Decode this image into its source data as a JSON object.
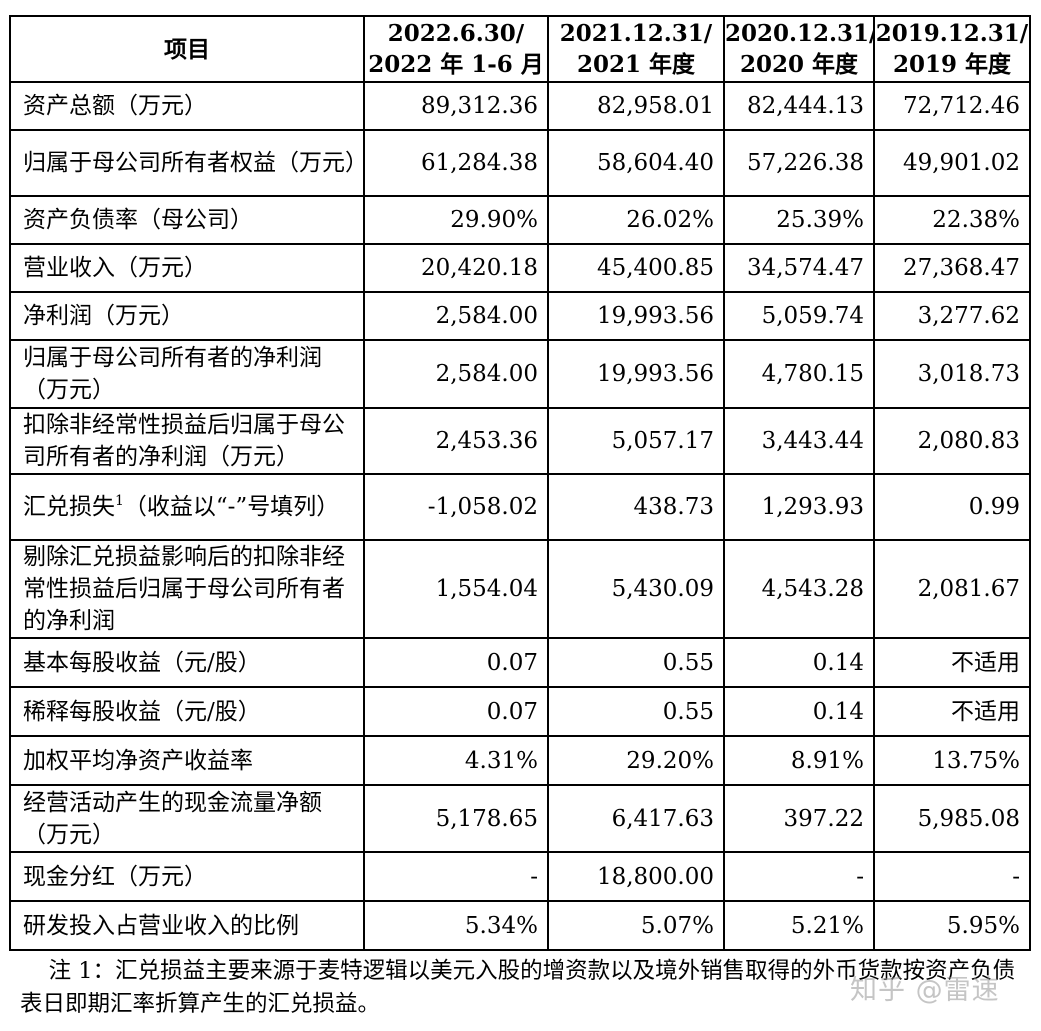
{
  "table": {
    "headers": [
      {
        "line1": "项目",
        "line2": ""
      },
      {
        "line1": "2022.6.30/",
        "line2": "2022 年 1-6 月"
      },
      {
        "line1": "2021.12.31/",
        "line2": "2021 年度"
      },
      {
        "line1": "2020.12.31/",
        "line2": "2020 年度"
      },
      {
        "line1": "2019.12.31/",
        "line2": "2019 年度"
      }
    ],
    "rows": [
      {
        "label": "资产总额（万元）",
        "values": [
          "89,312.36",
          "82,958.01",
          "82,444.13",
          "72,712.46"
        ]
      },
      {
        "label": "归属于母公司所有者权益（万元）",
        "values": [
          "61,284.38",
          "58,604.40",
          "57,226.38",
          "49,901.02"
        ]
      },
      {
        "label": "资产负债率（母公司）",
        "values": [
          "29.90%",
          "26.02%",
          "25.39%",
          "22.38%"
        ]
      },
      {
        "label": "营业收入（万元）",
        "values": [
          "20,420.18",
          "45,400.85",
          "34,574.47",
          "27,368.47"
        ]
      },
      {
        "label": "净利润（万元）",
        "values": [
          "2,584.00",
          "19,993.56",
          "5,059.74",
          "3,277.62"
        ]
      },
      {
        "label": "归属于母公司所有者的净利润（万元）",
        "values": [
          "2,584.00",
          "19,993.56",
          "4,780.15",
          "3,018.73"
        ]
      },
      {
        "label": "扣除非经常性损益后归属于母公司所有者的净利润（万元）",
        "values": [
          "2,453.36",
          "5,057.17",
          "3,443.44",
          "2,080.83"
        ]
      },
      {
        "label_pre": "汇兑损失",
        "label_sup": "1",
        "label_post": "（收益以“-”号填列）",
        "values": [
          "-1,058.02",
          "438.73",
          "1,293.93",
          "0.99"
        ]
      },
      {
        "label": "剔除汇兑损益影响后的扣除非经常性损益后归属于母公司所有者的净利润",
        "values": [
          "1,554.04",
          "5,430.09",
          "4,543.28",
          "2,081.67"
        ]
      },
      {
        "label": "基本每股收益（元/股）",
        "values": [
          "0.07",
          "0.55",
          "0.14",
          "不适用"
        ]
      },
      {
        "label": "稀释每股收益（元/股）",
        "values": [
          "0.07",
          "0.55",
          "0.14",
          "不适用"
        ]
      },
      {
        "label": "加权平均净资产收益率",
        "values": [
          "4.31%",
          "29.20%",
          "8.91%",
          "13.75%"
        ]
      },
      {
        "label": "经营活动产生的现金流量净额（万元）",
        "values": [
          "5,178.65",
          "6,417.63",
          "397.22",
          "5,985.08"
        ]
      },
      {
        "label": "现金分红（万元）",
        "values": [
          "-",
          "18,800.00",
          "-",
          "-"
        ]
      },
      {
        "label": "研发投入占营业收入的比例",
        "values": [
          "5.34%",
          "5.07%",
          "5.21%",
          "5.95%"
        ]
      }
    ]
  },
  "footnote": "    注 1：汇兑损益主要来源于麦特逻辑以美元入股的增资款以及境外销售取得的外币货款按资产负债表日即期汇率折算产生的汇兑损益。",
  "watermark": "知乎 @雷速"
}
